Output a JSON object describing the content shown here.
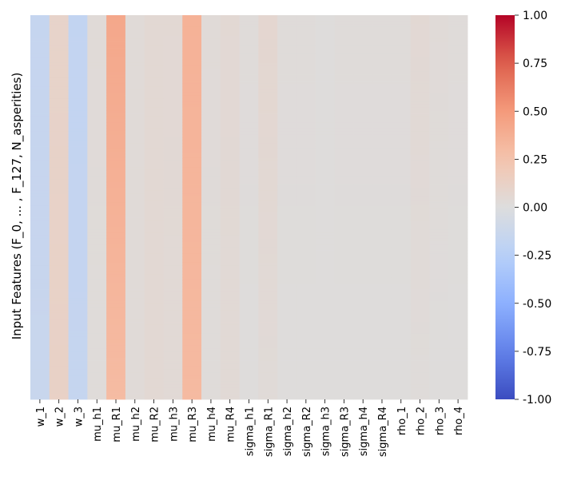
{
  "chart_data": {
    "type": "heatmap",
    "title": "",
    "xlabel": "",
    "ylabel": "Input Features (F_0, ... , F_127, N_asperities)",
    "columns": [
      "w_1",
      "w_2",
      "w_3",
      "mu_h1",
      "mu_R1",
      "mu_h2",
      "mu_R2",
      "mu_h3",
      "mu_R3",
      "mu_h4",
      "mu_R4",
      "sigma_h1",
      "sigma_R1",
      "sigma_h2",
      "sigma_R2",
      "sigma_h3",
      "sigma_R3",
      "sigma_h4",
      "sigma_R4",
      "rho_1",
      "rho_2",
      "rho_3",
      "rho_4"
    ],
    "column_values_top": [
      -0.16,
      0.1,
      -0.18,
      0.03,
      0.42,
      0.03,
      0.05,
      0.05,
      0.36,
      0.03,
      0.05,
      0.02,
      0.07,
      0.02,
      0.02,
      0.01,
      0.02,
      0.02,
      0.02,
      0.02,
      0.05,
      0.03,
      0.02
    ],
    "column_values_bottom": [
      -0.14,
      0.12,
      -0.16,
      0.02,
      0.3,
      0.03,
      0.05,
      0.04,
      0.31,
      0.02,
      0.04,
      0.01,
      0.03,
      0.01,
      0.01,
      0.01,
      0.01,
      0.01,
      0.01,
      0.01,
      0.02,
      0.01,
      0.01
    ],
    "row_count": 129,
    "colorbar": {
      "colormap": "coolwarm",
      "vmin": -1.0,
      "vmax": 1.0,
      "ticks": [
        "-1.00",
        "-0.75",
        "-0.50",
        "-0.25",
        "0.00",
        "0.25",
        "0.50",
        "0.75",
        "1.00"
      ]
    }
  }
}
